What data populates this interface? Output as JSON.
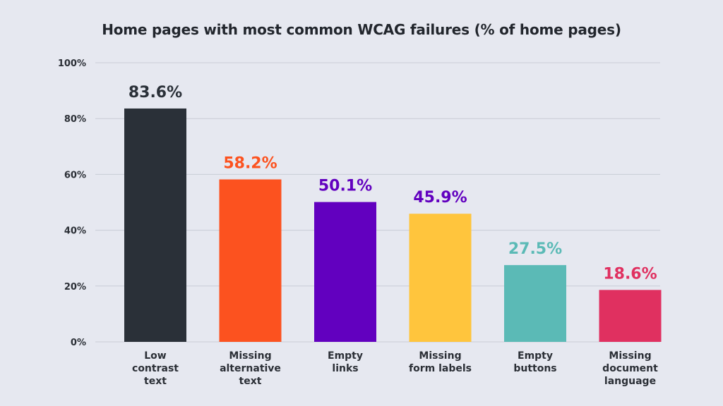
{
  "chart_data": {
    "type": "bar",
    "title": "Home pages with most common WCAG failures (% of home pages)",
    "xlabel": "",
    "ylabel": "",
    "ylim": [
      0,
      100
    ],
    "y_ticks": [
      "0%",
      "20%",
      "40%",
      "60%",
      "80%",
      "100%"
    ],
    "y_tick_values": [
      0,
      20,
      40,
      60,
      80,
      100
    ],
    "grid": true,
    "categories": [
      [
        "Low",
        "contrast",
        "text"
      ],
      [
        "Missing",
        "alternative",
        "text"
      ],
      [
        "Empty",
        "links"
      ],
      [
        "Missing",
        "form labels"
      ],
      [
        "Empty",
        "buttons"
      ],
      [
        "Missing",
        "document",
        "language"
      ]
    ],
    "values": [
      83.6,
      58.2,
      50.1,
      45.9,
      27.5,
      18.6
    ],
    "value_labels": [
      "83.6%",
      "58.2%",
      "50.1%",
      "45.9%",
      "27.5%",
      "18.6%"
    ],
    "bar_colors": [
      "#2a3038",
      "#fc521f",
      "#6200bf",
      "#ffc53d",
      "#5bbab6",
      "#e03060"
    ],
    "label_colors": [
      "#2a3038",
      "#fc521f",
      "#6200bf",
      "#6200bf",
      "#5bbab6",
      "#e03060"
    ],
    "gridline_color": "#c9ccd6"
  }
}
